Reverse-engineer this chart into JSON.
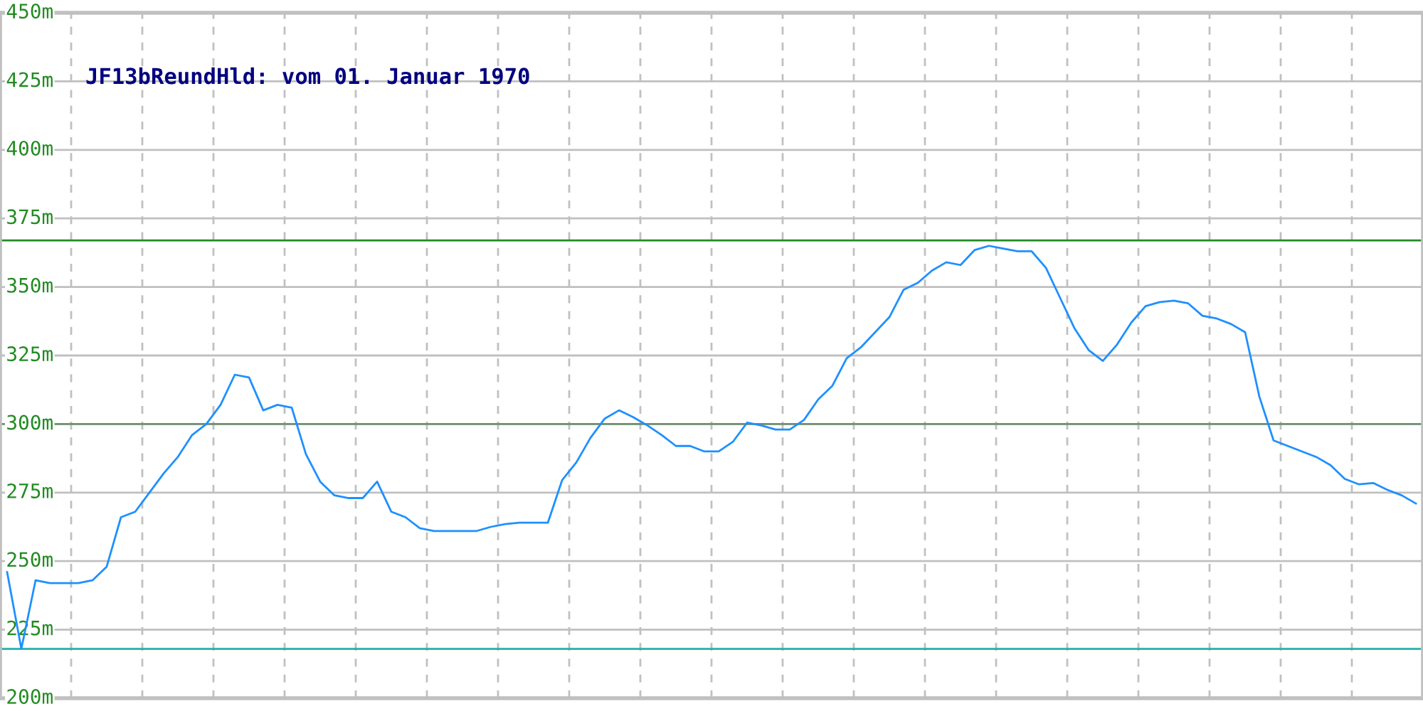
{
  "chart_data": {
    "type": "line",
    "title": "JF13bReundHld: vom 01. Januar 1970",
    "categories": [
      null,
      null,
      null,
      null,
      null,
      null,
      null,
      null,
      null,
      null,
      null,
      null,
      null,
      null,
      null,
      null,
      null,
      null,
      null,
      null,
      null,
      null,
      null,
      null,
      null,
      null,
      null,
      null,
      null,
      null,
      null,
      null,
      null,
      null,
      null,
      null,
      null,
      null,
      null,
      null,
      null,
      null,
      null,
      null,
      null,
      null,
      null,
      null,
      null,
      null,
      null,
      null,
      null,
      null,
      null,
      null,
      null,
      null,
      null,
      null,
      null,
      null,
      null,
      null,
      null,
      null,
      null,
      null,
      null,
      null,
      null,
      null,
      null,
      null,
      null,
      null,
      null,
      null,
      null,
      null,
      null,
      null,
      null,
      null,
      null,
      null,
      null,
      null,
      null,
      null,
      null,
      null,
      null,
      null,
      null,
      null,
      null,
      null,
      null,
      null
    ],
    "series": [
      {
        "color": "#1e90ff",
        "values": [
          246,
          218,
          243,
          242,
          242,
          242,
          243,
          248,
          266,
          268,
          275,
          282,
          288,
          296,
          300,
          307,
          318,
          317,
          305,
          307,
          306,
          289,
          279,
          274,
          273,
          273,
          279,
          268,
          266,
          262,
          261,
          261,
          261,
          261,
          262.5,
          263.5,
          264,
          264,
          264,
          279.5,
          286,
          295,
          302,
          305,
          302.5,
          299.5,
          296,
          292,
          292,
          290,
          290,
          293.5,
          300.5,
          299.5,
          298,
          298,
          301.5,
          309,
          314,
          324,
          328,
          333.5,
          339,
          349,
          351.5,
          356,
          359,
          358,
          363.5,
          365,
          364,
          363,
          363,
          357,
          346,
          335,
          327,
          323,
          329,
          337,
          343,
          344.5,
          345,
          344,
          339.5,
          338.5,
          336.5,
          333.5,
          310,
          294,
          292,
          290,
          288,
          285,
          280,
          278,
          278.5,
          276,
          274,
          271
        ]
      }
    ],
    "ylim": [
      200,
      450
    ],
    "yticks": [
      {
        "value": 200,
        "label": "200m"
      },
      {
        "value": 225,
        "label": "225m"
      },
      {
        "value": 250,
        "label": "250m"
      },
      {
        "value": 275,
        "label": "275m"
      },
      {
        "value": 300,
        "label": "300m"
      },
      {
        "value": 325,
        "label": "325m"
      },
      {
        "value": 350,
        "label": "350m"
      },
      {
        "value": 375,
        "label": "375m"
      },
      {
        "value": 400,
        "label": "400m"
      },
      {
        "value": 425,
        "label": "425m"
      },
      {
        "value": 450,
        "label": "450m"
      }
    ],
    "ref_lines": [
      {
        "axis": "y",
        "value": 367,
        "label": null,
        "color": "#228b22"
      },
      {
        "axis": "y",
        "value": 300,
        "label": null,
        "color": "#6f8f6f"
      },
      {
        "axis": "y",
        "value": 218,
        "label": null,
        "color": "#20b2aa"
      }
    ],
    "grid": true,
    "tick_labels": "y",
    "marker": "none",
    "line_style": "solid"
  }
}
